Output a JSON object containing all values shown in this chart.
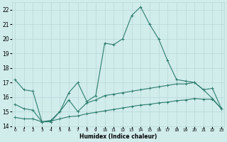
{
  "xlabel": "Humidex (Indice chaleur)",
  "x_values": [
    0,
    1,
    2,
    3,
    4,
    5,
    6,
    7,
    8,
    9,
    10,
    11,
    12,
    13,
    14,
    15,
    16,
    17,
    18,
    19,
    20,
    21,
    22,
    23
  ],
  "line1_y": [
    17.2,
    16.5,
    16.4,
    14.3,
    14.3,
    15.0,
    16.3,
    17.0,
    15.7,
    16.1,
    19.7,
    19.6,
    20.0,
    21.6,
    22.2,
    21.0,
    20.0,
    18.5,
    17.2,
    17.1,
    17.0,
    16.5,
    15.9,
    15.2
  ],
  "line2_y": [
    15.5,
    15.2,
    15.1,
    14.3,
    14.4,
    15.0,
    15.8,
    15.0,
    15.6,
    15.8,
    16.1,
    16.2,
    16.3,
    16.4,
    16.5,
    16.6,
    16.7,
    16.8,
    16.9,
    16.9,
    17.0,
    16.5,
    16.6,
    15.2
  ],
  "line3_y": [
    14.6,
    14.5,
    14.5,
    14.3,
    14.35,
    14.5,
    14.65,
    14.7,
    14.85,
    14.95,
    15.05,
    15.15,
    15.25,
    15.35,
    15.45,
    15.5,
    15.6,
    15.65,
    15.75,
    15.8,
    15.9,
    15.85,
    15.85,
    15.2
  ],
  "line_color": "#2e7d6e",
  "bg_color": "#d0eceb",
  "grid_color": "#b8d8d6",
  "ylim": [
    14,
    22.5
  ],
  "yticks": [
    14,
    15,
    16,
    17,
    18,
    19,
    20,
    21,
    22
  ],
  "xlim": [
    -0.3,
    23.3
  ]
}
